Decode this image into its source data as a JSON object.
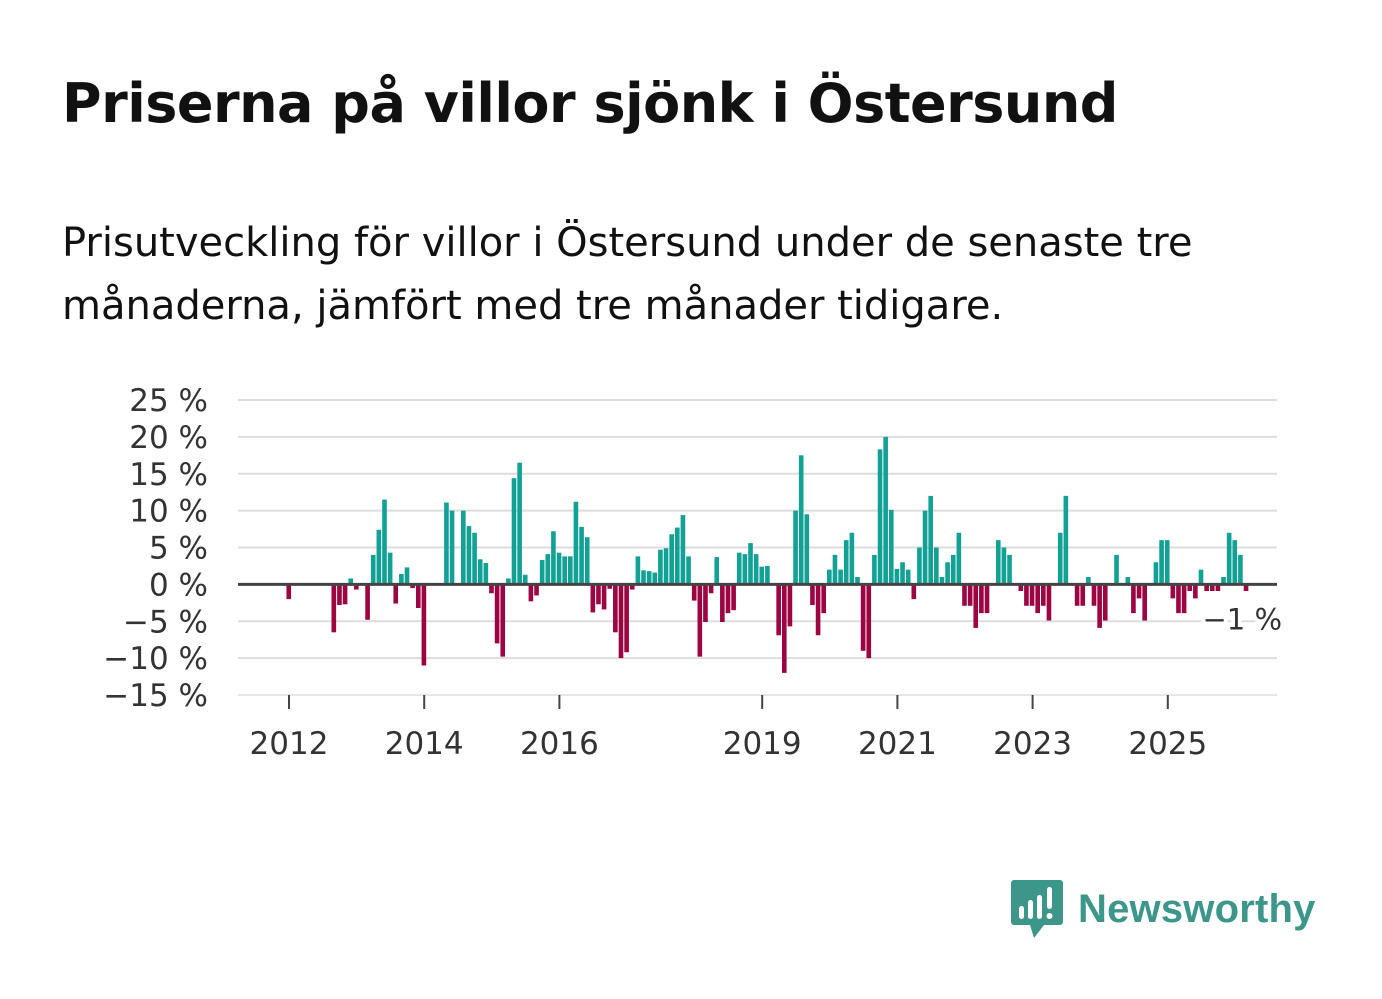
{
  "title": "Priserna på villor sjönk i Östersund",
  "subtitle": "Prisutveckling för villor i Östersund under de senaste tre månaderna, jämfört med tre månader tidigare.",
  "brand": {
    "name": "Newsworthy",
    "color": "#3c978a"
  },
  "colors": {
    "positive": "#12a195",
    "negative": "#9c0542",
    "zero_line": "#444444",
    "grid": "#dddddd"
  },
  "chart_data": {
    "type": "bar",
    "title": "Priserna på villor sjönk i Östersund",
    "ylabel": "",
    "xlabel": "",
    "ylim": [
      -15,
      25
    ],
    "y_ticks": [
      {
        "value": 25,
        "label": "25 %"
      },
      {
        "value": 20,
        "label": "20 %"
      },
      {
        "value": 15,
        "label": "15 %"
      },
      {
        "value": 10,
        "label": "10 %"
      },
      {
        "value": 5,
        "label": "5 %"
      },
      {
        "value": 0,
        "label": "0 %"
      },
      {
        "value": -5,
        "label": "−5 %"
      },
      {
        "value": -10,
        "label": "−10 %"
      },
      {
        "value": -15,
        "label": "−15 %"
      }
    ],
    "x_ticks": [
      {
        "value": 2012.0,
        "label": "2012"
      },
      {
        "value": 2014.0,
        "label": "2014"
      },
      {
        "value": 2016.0,
        "label": "2016"
      },
      {
        "value": 2019.0,
        "label": "2019"
      },
      {
        "value": 2021.0,
        "label": "2021"
      },
      {
        "value": 2023.0,
        "label": "2023"
      },
      {
        "value": 2025.0,
        "label": "2025"
      }
    ],
    "x_start": 2011.33,
    "period": 0.0833,
    "values": [
      0,
      0,
      0,
      0,
      0,
      0,
      0,
      0,
      -2,
      0,
      0,
      0,
      0,
      0,
      0,
      0,
      -6.5,
      -2.8,
      -2.7,
      0.8,
      -0.7,
      0,
      -4.8,
      4,
      7.4,
      11.5,
      4.3,
      -2.6,
      1.4,
      2.3,
      -0.5,
      -3.2,
      -11,
      0,
      0,
      0,
      11.1,
      10,
      0,
      10,
      7.9,
      7,
      3.4,
      2.9,
      -1.2,
      -8,
      -9.8,
      0.8,
      14.4,
      16.5,
      1.3,
      -2.3,
      -1.5,
      3.3,
      4.1,
      7.2,
      4.3,
      3.8,
      3.8,
      11.2,
      7.8,
      6.4,
      -3.8,
      -2.7,
      -3.4,
      -0.6,
      -6.5,
      -10,
      -9.2,
      -0.7,
      3.8,
      1.9,
      1.8,
      1.6,
      4.7,
      4.9,
      6.8,
      7.7,
      9.4,
      3.8,
      -2.2,
      -9.8,
      -5.1,
      -1.2,
      3.7,
      -5.1,
      -3.9,
      -3.5,
      4.3,
      4.1,
      5.6,
      4.1,
      2.4,
      2.5,
      0,
      -6.9,
      -12,
      -5.7,
      10,
      17.5,
      9.5,
      -2.8,
      -6.9,
      -3.9,
      2,
      4,
      2,
      6,
      7,
      1,
      -9,
      -10,
      4,
      18.3,
      20,
      10.1,
      2.1,
      3,
      2,
      -2,
      5,
      10,
      12,
      5,
      1,
      3,
      4,
      7,
      -2.9,
      -2.9,
      -5.9,
      -3.9,
      -3.9,
      0,
      6,
      5,
      4,
      0,
      -0.9,
      -2.9,
      -2.9,
      -3.9,
      -2.9,
      -4.9,
      0,
      7,
      12,
      0,
      -2.9,
      -2.9,
      1,
      -2.9,
      -5.9,
      -4.9,
      0,
      4,
      0,
      1,
      -3.9,
      -1.9,
      -4.9,
      0,
      3,
      6,
      6,
      -1.9,
      -3.9,
      -3.9,
      -0.9,
      -1.9,
      2,
      -0.9,
      -0.9,
      -0.9,
      1,
      7,
      6,
      4,
      -0.9
    ],
    "annotation": {
      "label": "−1 %",
      "value": -1
    }
  }
}
